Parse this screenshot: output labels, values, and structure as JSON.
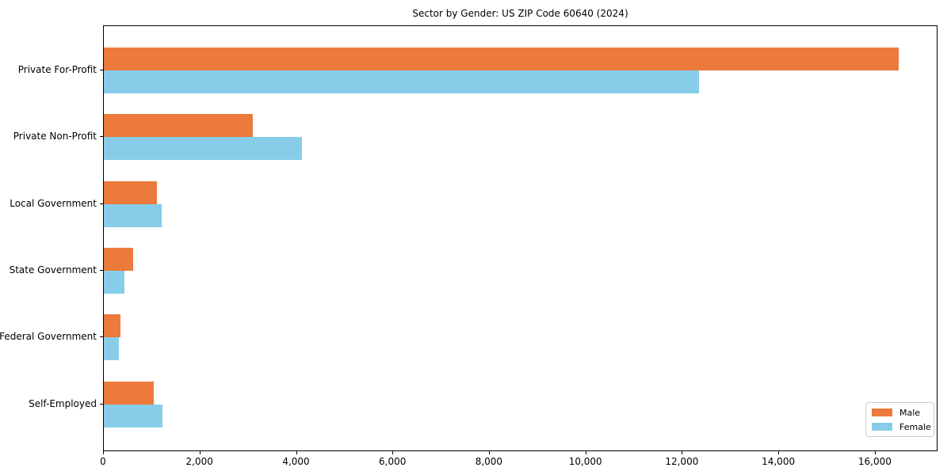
{
  "title": "Sector by Gender: US ZIP Code 60640 (2024)",
  "colors": {
    "male": "#EC7A3C",
    "female": "#87CDEA",
    "axis": "#000000",
    "legend_border": "#cccccc",
    "background": "#ffffff"
  },
  "legend": {
    "position": "lower right",
    "items": [
      {
        "label": "Male",
        "color": "#EC7A3C"
      },
      {
        "label": "Female",
        "color": "#87CDEA"
      }
    ]
  },
  "chart_data": {
    "type": "bar",
    "orientation": "horizontal",
    "title": "Sector by Gender: US ZIP Code 60640 (2024)",
    "xlabel": "",
    "ylabel": "",
    "categories": [
      "Private For-Profit",
      "Private Non-Profit",
      "Local Government",
      "State Government",
      "Federal Government",
      "Self-Employed"
    ],
    "series": [
      {
        "name": "Male",
        "color": "#EC7A3C",
        "values": [
          16480,
          3080,
          1100,
          610,
          340,
          1030
        ]
      },
      {
        "name": "Female",
        "color": "#87CDEA",
        "values": [
          12340,
          4100,
          1200,
          430,
          310,
          1210
        ]
      }
    ],
    "xlim": [
      0,
      17300
    ],
    "x_ticks": [
      0,
      2000,
      4000,
      6000,
      8000,
      10000,
      12000,
      14000,
      16000
    ],
    "x_tick_labels": [
      "0",
      "2,000",
      "4,000",
      "6,000",
      "8,000",
      "10,000",
      "12,000",
      "14,000",
      "16,000"
    ],
    "grid": false,
    "legend_position": "lower right"
  }
}
